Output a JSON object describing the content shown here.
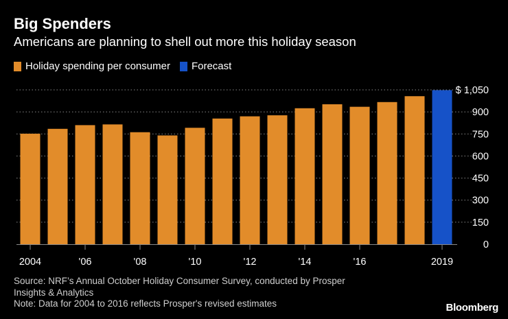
{
  "header": {
    "title": "Big Spenders",
    "subtitle": "Americans are planning to shell out more this holiday season"
  },
  "legend": {
    "items": [
      {
        "label": "Holiday spending per consumer",
        "color": "#e28c2a"
      },
      {
        "label": "Forecast",
        "color": "#1652c8"
      }
    ]
  },
  "chart_data": {
    "type": "bar",
    "title": "Big Spenders",
    "subtitle": "Americans are planning to shell out more this holiday season",
    "xlabel": "",
    "ylabel": "",
    "categories": [
      "2004",
      "2005",
      "2006",
      "2007",
      "2008",
      "2009",
      "2010",
      "2011",
      "2012",
      "2013",
      "2014",
      "2015",
      "2016",
      "2017",
      "2018",
      "2019"
    ],
    "x_tick_labels": [
      {
        "category": "2004",
        "label": "2004"
      },
      {
        "category": "2006",
        "label": "'06"
      },
      {
        "category": "2008",
        "label": "'08"
      },
      {
        "category": "2010",
        "label": "'10"
      },
      {
        "category": "2012",
        "label": "'12"
      },
      {
        "category": "2014",
        "label": "'14"
      },
      {
        "category": "2016",
        "label": "'16"
      },
      {
        "category": "2019",
        "label": "2019"
      }
    ],
    "series": [
      {
        "name": "Holiday spending per consumer",
        "color": "#e28c2a",
        "values": [
          752,
          785,
          810,
          815,
          762,
          740,
          792,
          855,
          870,
          877,
          925,
          952,
          935,
          967,
          1007,
          null
        ]
      },
      {
        "name": "Forecast",
        "color": "#1652c8",
        "values": [
          null,
          null,
          null,
          null,
          null,
          null,
          null,
          null,
          null,
          null,
          null,
          null,
          null,
          null,
          null,
          1048
        ]
      }
    ],
    "ylim": [
      0,
      1050
    ],
    "yticks": [
      {
        "value": 1050,
        "label": "$ 1,050"
      },
      {
        "value": 900,
        "label": "900"
      },
      {
        "value": 750,
        "label": "750"
      },
      {
        "value": 600,
        "label": "600"
      },
      {
        "value": 450,
        "label": "450"
      },
      {
        "value": 300,
        "label": "300"
      },
      {
        "value": 150,
        "label": "150"
      },
      {
        "value": 0,
        "label": "0"
      }
    ],
    "grid": true,
    "axis_color": "#8a8a8a",
    "grid_color": "#8a8a8a"
  },
  "footer": {
    "source_line1": "Source: NRF’s Annual October Holiday Consumer Survey, conducted by Prosper",
    "source_line2": "Insights & Analytics",
    "note": "Note: Data for 2004 to 2016 reflects Prosper's revised estimates"
  },
  "brand": "Bloomberg"
}
